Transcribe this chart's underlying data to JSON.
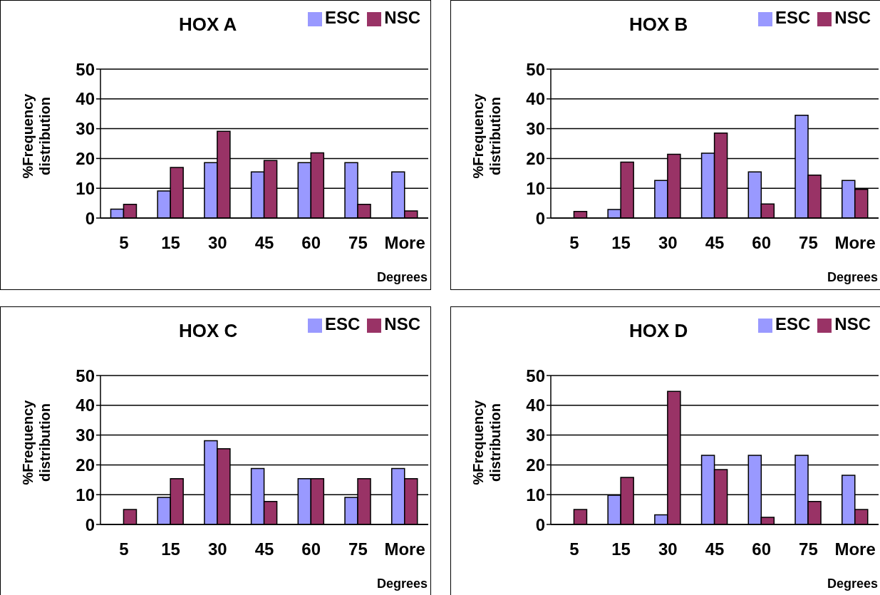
{
  "chart_data": [
    {
      "type": "bar",
      "title": "HOX A",
      "xlabel": "Degrees",
      "ylabel": "%Frequency distribution",
      "categories": [
        "5",
        "15",
        "30",
        "45",
        "60",
        "75",
        "More"
      ],
      "series": [
        {
          "name": "ESC",
          "color": "#9999ff",
          "values": [
            3,
            9.1,
            18.6,
            15.5,
            18.6,
            18.6,
            15.5
          ]
        },
        {
          "name": "NSC",
          "color": "#993366",
          "values": [
            4.6,
            17,
            29.1,
            19.3,
            21.9,
            4.6,
            2.4
          ]
        }
      ],
      "ylim": [
        0,
        50
      ],
      "yticks": [
        0,
        10,
        20,
        30,
        40,
        50
      ],
      "grid": "y",
      "legend": "top right"
    },
    {
      "type": "bar",
      "title": "HOX B",
      "xlabel": "Degrees",
      "ylabel": "%Frequency distribution",
      "categories": [
        "5",
        "15",
        "30",
        "45",
        "60",
        "75",
        "More"
      ],
      "series": [
        {
          "name": "ESC",
          "color": "#9999ff",
          "values": [
            0,
            2.9,
            12.6,
            21.8,
            15.5,
            34.5,
            12.6
          ]
        },
        {
          "name": "NSC",
          "color": "#993366",
          "values": [
            2.2,
            18.8,
            21.4,
            28.5,
            4.7,
            14.4,
            9.6
          ]
        }
      ],
      "ylim": [
        0,
        50
      ],
      "yticks": [
        0,
        10,
        20,
        30,
        40,
        50
      ],
      "grid": "y",
      "legend": "top right"
    },
    {
      "type": "bar",
      "title": "HOX C",
      "xlabel": "Degrees",
      "ylabel": "%Frequency distribution",
      "categories": [
        "5",
        "15",
        "30",
        "45",
        "60",
        "75",
        "More"
      ],
      "series": [
        {
          "name": "ESC",
          "color": "#9999ff",
          "values": [
            0,
            9.1,
            28.1,
            18.8,
            15.4,
            9.1,
            18.8
          ]
        },
        {
          "name": "NSC",
          "color": "#993366",
          "values": [
            5,
            15.4,
            25.4,
            7.7,
            15.4,
            15.4,
            15.4
          ]
        }
      ],
      "ylim": [
        0,
        50
      ],
      "yticks": [
        0,
        10,
        20,
        30,
        40,
        50
      ],
      "grid": "y",
      "legend": "top right"
    },
    {
      "type": "bar",
      "title": "HOX D",
      "xlabel": "Degrees",
      "ylabel": "%Frequency distribution",
      "categories": [
        "5",
        "15",
        "30",
        "45",
        "60",
        "75",
        "More"
      ],
      "series": [
        {
          "name": "ESC",
          "color": "#9999ff",
          "values": [
            0,
            9.8,
            3.2,
            23.2,
            23.2,
            23.2,
            16.5
          ]
        },
        {
          "name": "NSC",
          "color": "#993366",
          "values": [
            5,
            15.8,
            44.7,
            18.4,
            2.4,
            7.7,
            5
          ]
        }
      ],
      "ylim": [
        0,
        50
      ],
      "yticks": [
        0,
        10,
        20,
        30,
        40,
        50
      ],
      "grid": "y",
      "legend": "top right"
    }
  ]
}
